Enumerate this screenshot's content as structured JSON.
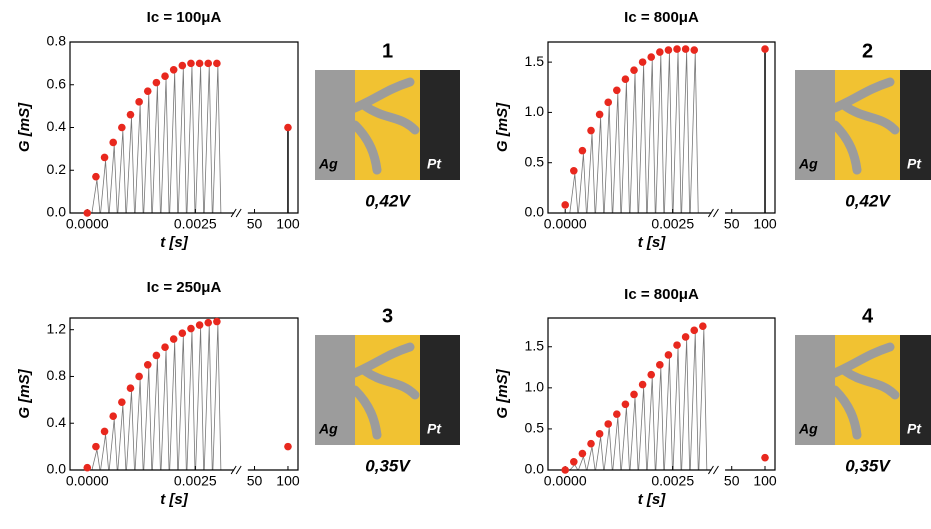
{
  "chart_data": [
    {
      "type": "scatter",
      "title": "Ic = 100μA",
      "xlabel": "t [s]",
      "ylabel": "G [mS]",
      "color": "#e8281e",
      "final_stem": true,
      "x": [
        0,
        0.0002,
        0.0004,
        0.0006,
        0.0008,
        0.001,
        0.0012,
        0.0014,
        0.0016,
        0.0018,
        0.002,
        0.0022,
        0.0024,
        0.0026,
        0.0028,
        0.003,
        100
      ],
      "values": [
        0.0,
        0.17,
        0.26,
        0.33,
        0.4,
        0.46,
        0.52,
        0.57,
        0.61,
        0.64,
        0.67,
        0.69,
        0.7,
        0.7,
        0.7,
        0.7,
        0.4
      ],
      "xlim": [
        -0.0004,
        115
      ],
      "xbreak": [
        0.0034,
        40
      ],
      "xticks": [
        {
          "value": 0,
          "label": "0.0000"
        },
        {
          "value": 0.0025,
          "label": "0.0025"
        },
        50,
        100
      ],
      "ylim": [
        0,
        0.8
      ],
      "yticks": [
        {
          "value": 0,
          "label": "0.0"
        },
        0.2,
        0.4,
        0.6,
        0.8
      ]
    },
    {
      "type": "scatter",
      "title": "Ic = 800μA",
      "xlabel": "t [s]",
      "ylabel": "G [mS]",
      "color": "#e8281e",
      "final_stem": true,
      "x": [
        0,
        0.0002,
        0.0004,
        0.0006,
        0.0008,
        0.001,
        0.0012,
        0.0014,
        0.0016,
        0.0018,
        0.002,
        0.0022,
        0.0024,
        0.0026,
        0.0028,
        0.003,
        100
      ],
      "values": [
        0.08,
        0.42,
        0.62,
        0.82,
        0.98,
        1.1,
        1.22,
        1.33,
        1.42,
        1.5,
        1.55,
        1.6,
        1.62,
        1.63,
        1.63,
        1.62,
        1.63
      ],
      "xlim": [
        -0.0004,
        115
      ],
      "xbreak": [
        0.0034,
        40
      ],
      "xticks": [
        {
          "value": 0,
          "label": "0.0000"
        },
        {
          "value": 0.0025,
          "label": "0.0025"
        },
        50,
        100
      ],
      "ylim": [
        0,
        1.7
      ],
      "yticks": [
        {
          "value": 0,
          "label": "0.0"
        },
        0.5,
        {
          "value": 1,
          "label": "1.0"
        },
        1.5
      ]
    },
    {
      "type": "scatter",
      "title": "Ic = 250μA",
      "xlabel": "t [s]",
      "ylabel": "G [mS]",
      "color": "#e8281e",
      "final_stem": false,
      "x": [
        0,
        0.0002,
        0.0004,
        0.0006,
        0.0008,
        0.001,
        0.0012,
        0.0014,
        0.0016,
        0.0018,
        0.002,
        0.0022,
        0.0024,
        0.0026,
        0.0028,
        0.003,
        100
      ],
      "values": [
        0.02,
        0.2,
        0.33,
        0.46,
        0.58,
        0.7,
        0.8,
        0.9,
        0.98,
        1.05,
        1.12,
        1.17,
        1.21,
        1.24,
        1.26,
        1.27,
        0.2
      ],
      "xlim": [
        -0.0004,
        115
      ],
      "xbreak": [
        0.0034,
        40
      ],
      "xticks": [
        {
          "value": 0,
          "label": "0.0000"
        },
        {
          "value": 0.0025,
          "label": "0.0025"
        },
        50,
        100
      ],
      "ylim": [
        0,
        1.3
      ],
      "yticks": [
        {
          "value": 0,
          "label": "0.0"
        },
        0.4,
        0.8,
        1.2
      ]
    },
    {
      "type": "scatter",
      "title": "Ic = 800μA",
      "xlabel": "t [s]",
      "ylabel": "G [mS]",
      "color": "#e8281e",
      "final_stem": false,
      "x": [
        0,
        0.0002,
        0.0004,
        0.0006,
        0.0008,
        0.001,
        0.0012,
        0.0014,
        0.0016,
        0.0018,
        0.002,
        0.0022,
        0.0024,
        0.0026,
        0.0028,
        0.003,
        0.0032,
        100
      ],
      "values": [
        0.0,
        0.1,
        0.2,
        0.32,
        0.44,
        0.56,
        0.68,
        0.8,
        0.92,
        1.04,
        1.16,
        1.28,
        1.4,
        1.52,
        1.62,
        1.7,
        1.75,
        0.15
      ],
      "xlim": [
        -0.0004,
        115
      ],
      "xbreak": [
        0.0034,
        40
      ],
      "xticks": [
        {
          "value": 0,
          "label": "0.0000"
        },
        {
          "value": 0.0025,
          "label": "0.0025"
        },
        50,
        100
      ],
      "ylim": [
        0,
        1.85
      ],
      "yticks": [
        {
          "value": 0,
          "label": "0.0"
        },
        0.5,
        {
          "value": 1,
          "label": "1.0"
        },
        1.5
      ]
    }
  ],
  "insets": [
    {
      "number": "1",
      "left": "Ag",
      "right": "Pt",
      "voltage": "0,42V"
    },
    {
      "number": "2",
      "left": "Ag",
      "right": "Pt",
      "voltage": "0,42V"
    },
    {
      "number": "3",
      "left": "Ag",
      "right": "Pt",
      "voltage": "0,35V"
    },
    {
      "number": "4",
      "left": "Ag",
      "right": "Pt",
      "voltage": "0,35V"
    }
  ]
}
